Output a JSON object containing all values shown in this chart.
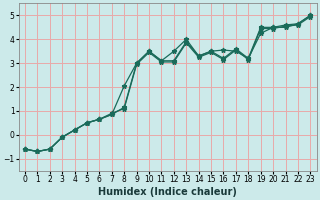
{
  "xlabel": "Humidex (Indice chaleur)",
  "background_color": "#cceaea",
  "grid_color": "#e8aaaa",
  "line_color": "#1a6b5a",
  "xlim": [
    -0.5,
    23.5
  ],
  "ylim": [
    -1.5,
    5.5
  ],
  "yticks": [
    -1,
    0,
    1,
    2,
    3,
    4,
    5
  ],
  "xticks": [
    0,
    1,
    2,
    3,
    4,
    5,
    6,
    7,
    8,
    9,
    10,
    11,
    12,
    13,
    14,
    15,
    16,
    17,
    18,
    19,
    20,
    21,
    22,
    23
  ],
  "line1_x": [
    0,
    1,
    2,
    3,
    4,
    5,
    6,
    7,
    8,
    9,
    10,
    11,
    12,
    13,
    14,
    15,
    16,
    17,
    18,
    19,
    20,
    21,
    22,
    23
  ],
  "line1_y": [
    -0.6,
    -0.7,
    -0.6,
    -0.1,
    0.2,
    0.5,
    0.65,
    0.85,
    1.15,
    3.0,
    3.5,
    3.1,
    3.1,
    3.9,
    3.3,
    3.5,
    3.2,
    3.6,
    3.2,
    4.5,
    4.5,
    4.6,
    4.65,
    5.0
  ],
  "line2_x": [
    0,
    1,
    2,
    3,
    4,
    5,
    6,
    7,
    8,
    9,
    10,
    11,
    12,
    13,
    14,
    15,
    16,
    17,
    18,
    19,
    20,
    21,
    22,
    23
  ],
  "line2_y": [
    -0.6,
    -0.7,
    -0.6,
    -0.1,
    0.2,
    0.5,
    0.65,
    0.85,
    2.05,
    3.0,
    3.5,
    3.1,
    3.5,
    4.0,
    3.3,
    3.5,
    3.55,
    3.5,
    3.2,
    4.25,
    4.5,
    4.5,
    4.65,
    5.0
  ],
  "line3_x": [
    0,
    1,
    2,
    3,
    4,
    5,
    6,
    7,
    8,
    9,
    10,
    11,
    12,
    13,
    14,
    15,
    16,
    17,
    18,
    19,
    20,
    21,
    22,
    23
  ],
  "line3_y": [
    -0.6,
    -0.7,
    -0.6,
    -0.1,
    0.2,
    0.5,
    0.65,
    0.9,
    1.1,
    2.95,
    3.45,
    3.05,
    3.05,
    3.85,
    3.25,
    3.45,
    3.15,
    3.55,
    3.15,
    4.45,
    4.45,
    4.55,
    4.6,
    4.95
  ],
  "tick_fontsize": 5.5,
  "xlabel_fontsize": 7,
  "marker": "*",
  "markersize": 3.5,
  "linewidth": 0.9
}
